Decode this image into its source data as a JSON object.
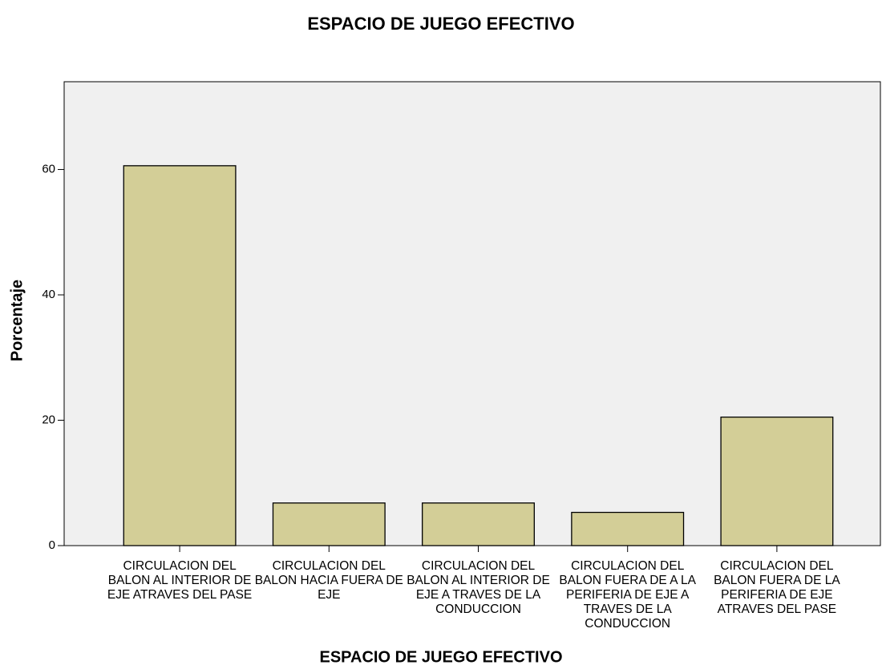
{
  "chart_data": {
    "type": "bar",
    "title": "ESPACIO DE JUEGO EFECTIVO",
    "x_label": "ESPACIO DE JUEGO EFECTIVO",
    "y_label": "Porcentaje",
    "categories": [
      "CIRCULACION DEL BALON AL INTERIOR DE EJE ATRAVES DEL PASE",
      "CIRCULACION DEL BALON HACIA FUERA DE EJE",
      "CIRCULACION DEL BALON AL INTERIOR DE EJE A TRAVES DE LA CONDUCCION",
      "CIRCULACION DEL BALON FUERA DE A LA PERIFERIA DE EJE A TRAVES DE LA CONDUCCION",
      "CIRCULACION DEL BALON FUERA DE LA PERIFERIA DE EJE ATRAVES DEL PASE"
    ],
    "values": [
      60.6,
      6.8,
      6.8,
      5.3,
      20.5
    ],
    "color": "#d3ce97",
    "ylim": [
      0,
      74
    ],
    "yticks": [
      0,
      20,
      40,
      60
    ],
    "grid": false
  }
}
